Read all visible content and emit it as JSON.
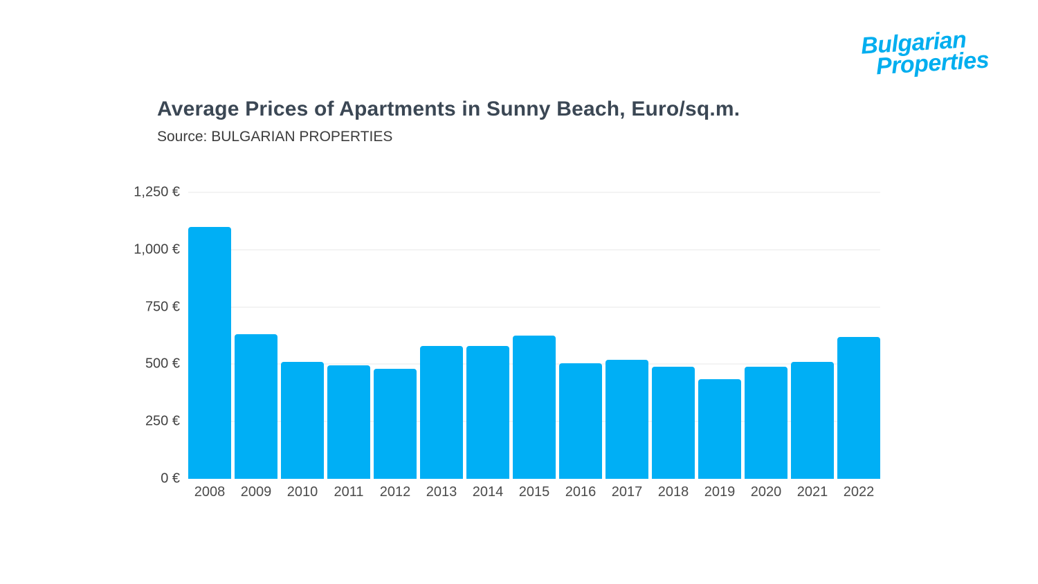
{
  "logo": {
    "line1": "Bulgarian",
    "line2": "Properties",
    "color": "#00aeef"
  },
  "header": {
    "title": "Average Prices of Apartments in Sunny Beach, Euro/sq.m.",
    "subtitle": "Source: BULGARIAN PROPERTIES"
  },
  "chart_data": {
    "type": "bar",
    "title": "Average Prices of Apartments in Sunny Beach, Euro/sq.m.",
    "subtitle": "Source: BULGARIAN PROPERTIES",
    "categories": [
      "2008",
      "2009",
      "2010",
      "2011",
      "2012",
      "2013",
      "2014",
      "2015",
      "2016",
      "2017",
      "2018",
      "2019",
      "2020",
      "2021",
      "2022"
    ],
    "values": [
      1100,
      630,
      510,
      495,
      480,
      580,
      580,
      625,
      505,
      520,
      490,
      435,
      490,
      510,
      620
    ],
    "xlabel": "",
    "ylabel": "",
    "ylim": [
      0,
      1250
    ],
    "ytick_step": 250,
    "ytick_labels": [
      "0 €",
      "250 €",
      "500 €",
      "750 €",
      "1,000 €",
      "1,250 €"
    ],
    "bar_color": "#00aff5",
    "grid": true,
    "legend": false,
    "currency": "€"
  }
}
